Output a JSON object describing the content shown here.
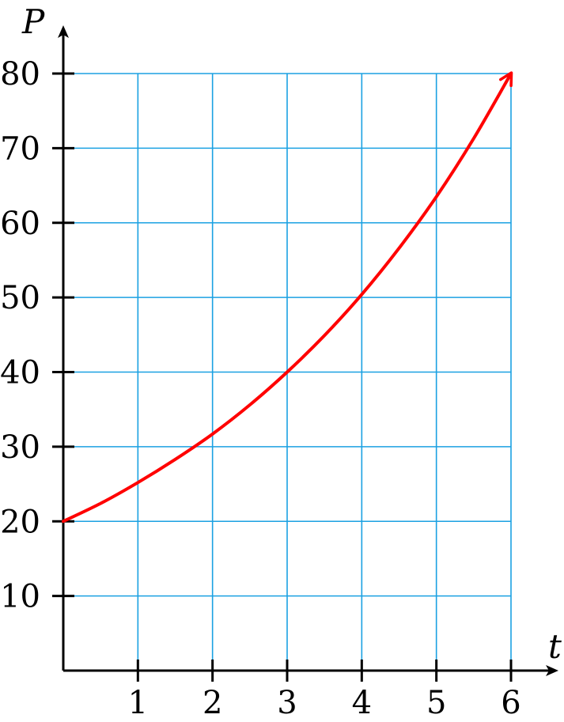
{
  "chart_data": {
    "type": "line",
    "title": "",
    "xlabel": "t",
    "ylabel": "P",
    "xlim": [
      0,
      6
    ],
    "ylim": [
      0,
      80
    ],
    "grid": true,
    "x_ticks": [
      1,
      2,
      3,
      4,
      5,
      6
    ],
    "y_ticks": [
      10,
      20,
      30,
      40,
      50,
      60,
      70,
      80
    ],
    "series": [
      {
        "x": [
          0,
          0.5,
          1,
          1.5,
          2,
          2.5,
          3,
          3.5,
          4,
          4.5,
          5,
          5.5,
          6
        ],
        "values": [
          20,
          22.4,
          25.2,
          28.3,
          31.7,
          35.6,
          40,
          44.9,
          50.4,
          56.6,
          63.5,
          71.3,
          80
        ],
        "color": "#ff0000",
        "arrow_end": true
      }
    ],
    "colors": {
      "grid": "#1ba1e2",
      "axis": "#000000",
      "curve": "#ff0000"
    }
  }
}
